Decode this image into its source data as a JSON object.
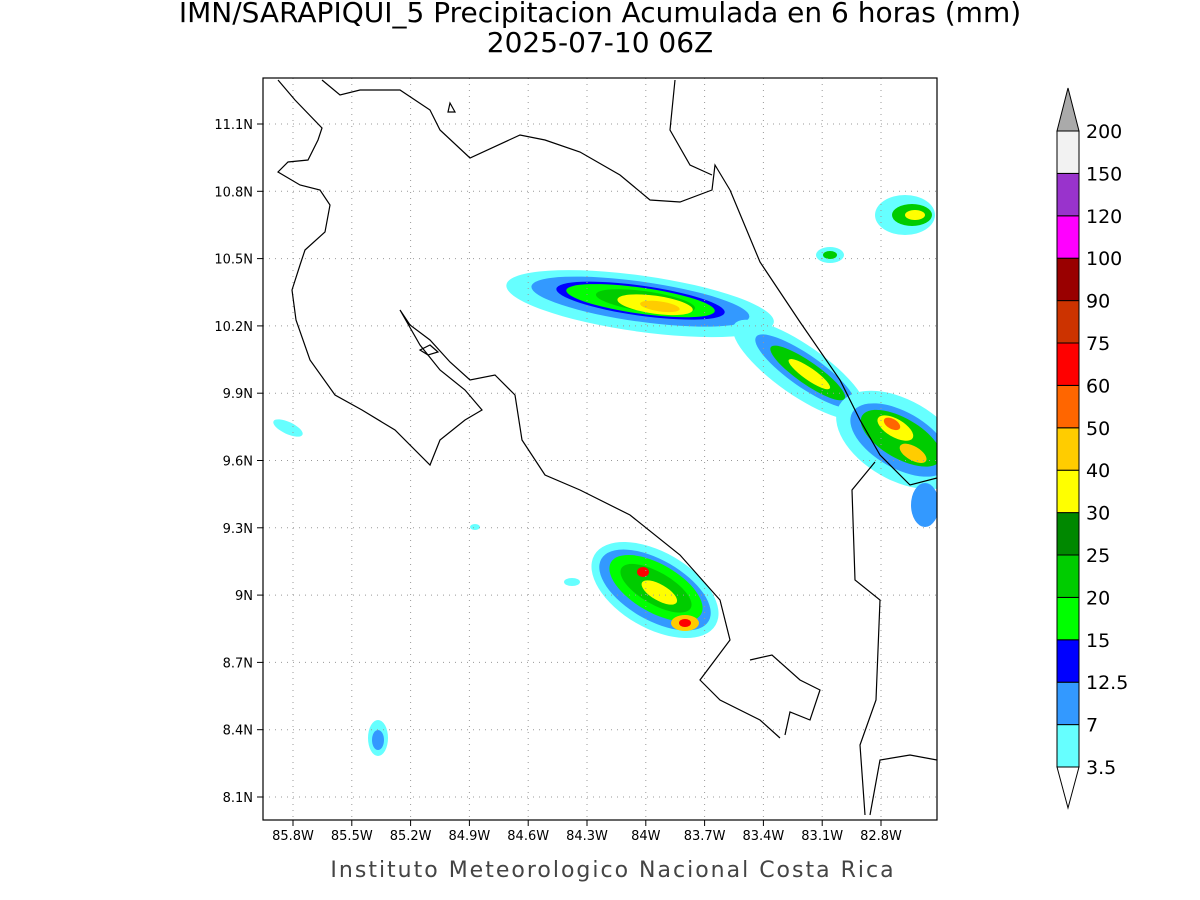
{
  "header": {
    "title": "IMN/SARAPIQUI_5 Precipitacion Acumulada en 6 horas (mm)",
    "subtitle": "2025-07-10 06Z"
  },
  "map": {
    "lon_ticks": [
      {
        "value": -85.8,
        "label": "85.8W"
      },
      {
        "value": -85.5,
        "label": "85.5W"
      },
      {
        "value": -85.2,
        "label": "85.2W"
      },
      {
        "value": -84.9,
        "label": "84.9W"
      },
      {
        "value": -84.6,
        "label": "84.6W"
      },
      {
        "value": -84.3,
        "label": "84.3W"
      },
      {
        "value": -84.0,
        "label": "84W"
      },
      {
        "value": -83.7,
        "label": "83.7W"
      },
      {
        "value": -83.4,
        "label": "83.4W"
      },
      {
        "value": -83.1,
        "label": "83.1W"
      },
      {
        "value": -82.8,
        "label": "82.8W"
      }
    ],
    "lat_ticks": [
      {
        "value": 11.1,
        "label": "11.1N"
      },
      {
        "value": 10.8,
        "label": "10.8N"
      },
      {
        "value": 10.5,
        "label": "10.5N"
      },
      {
        "value": 10.2,
        "label": "10.2N"
      },
      {
        "value": 9.9,
        "label": "9.9N"
      },
      {
        "value": 9.6,
        "label": "9.6N"
      },
      {
        "value": 9.3,
        "label": "9.3N"
      },
      {
        "value": 9.0,
        "label": "9N"
      },
      {
        "value": 8.7,
        "label": "8.7N"
      },
      {
        "value": 8.4,
        "label": "8.4N"
      },
      {
        "value": 8.1,
        "label": "8.1N"
      }
    ],
    "grid": true
  },
  "colorbar": {
    "levels": [
      3.5,
      7,
      12.5,
      15,
      20,
      25,
      30,
      40,
      50,
      60,
      75,
      90,
      100,
      120,
      150,
      200
    ],
    "colors": [
      "#66ffff",
      "#3399ff",
      "#0000ff",
      "#00ff00",
      "#00cc00",
      "#008800",
      "#ffff00",
      "#ffcc00",
      "#ff6600",
      "#ff0000",
      "#cc3300",
      "#990000",
      "#ff00ff",
      "#9933cc",
      "#f2f2f2"
    ],
    "under_color": "#ffffff",
    "over_color": "#aaaaaa"
  },
  "footer": "Instituto Meteorologico Nacional Costa Rica"
}
